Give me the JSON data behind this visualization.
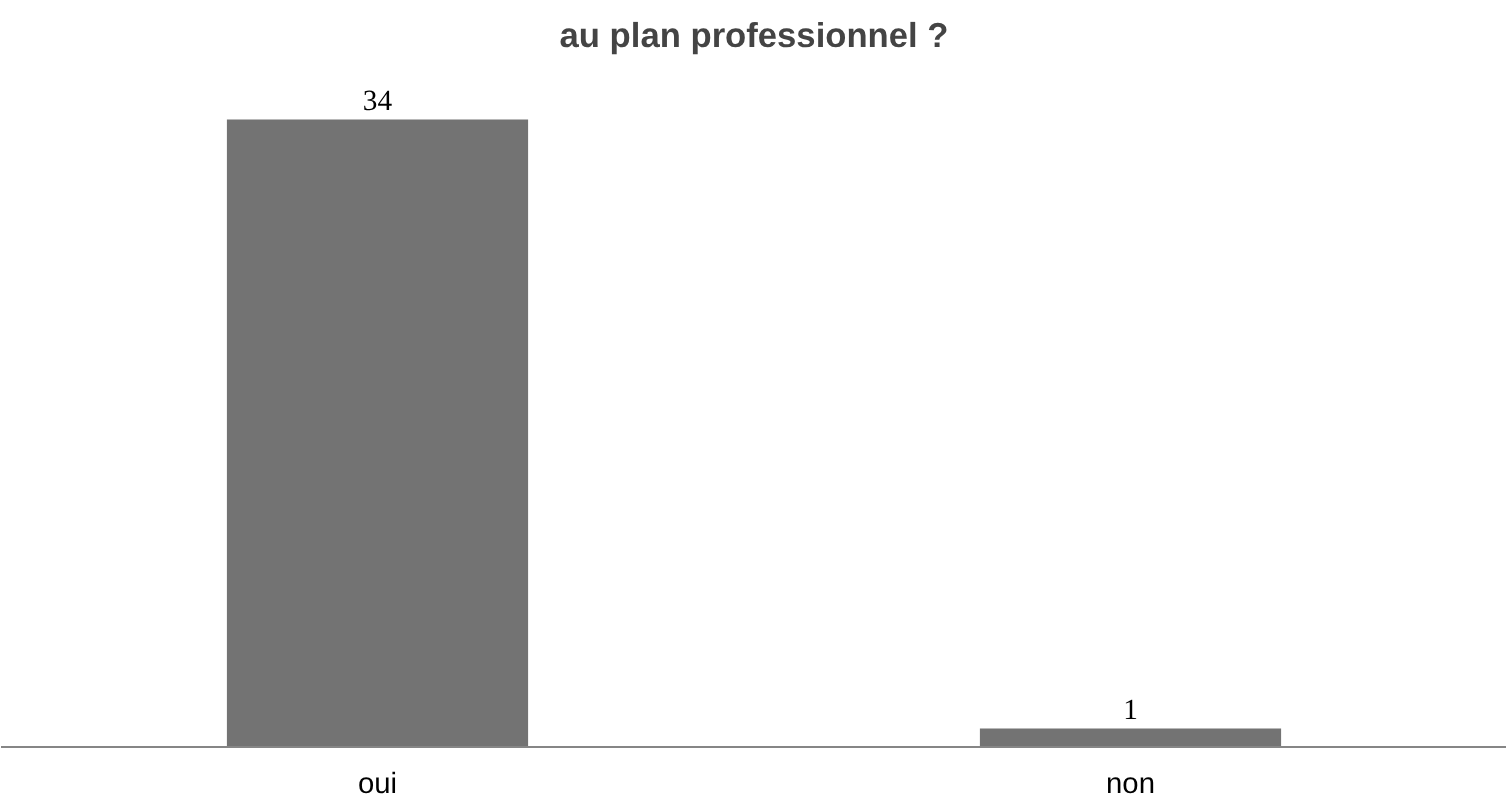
{
  "chart_data": {
    "type": "bar",
    "title": "au plan professionnel ?",
    "categories": [
      "oui",
      "non"
    ],
    "values": [
      34,
      1
    ],
    "color": "#737373",
    "data_labels": true
  }
}
